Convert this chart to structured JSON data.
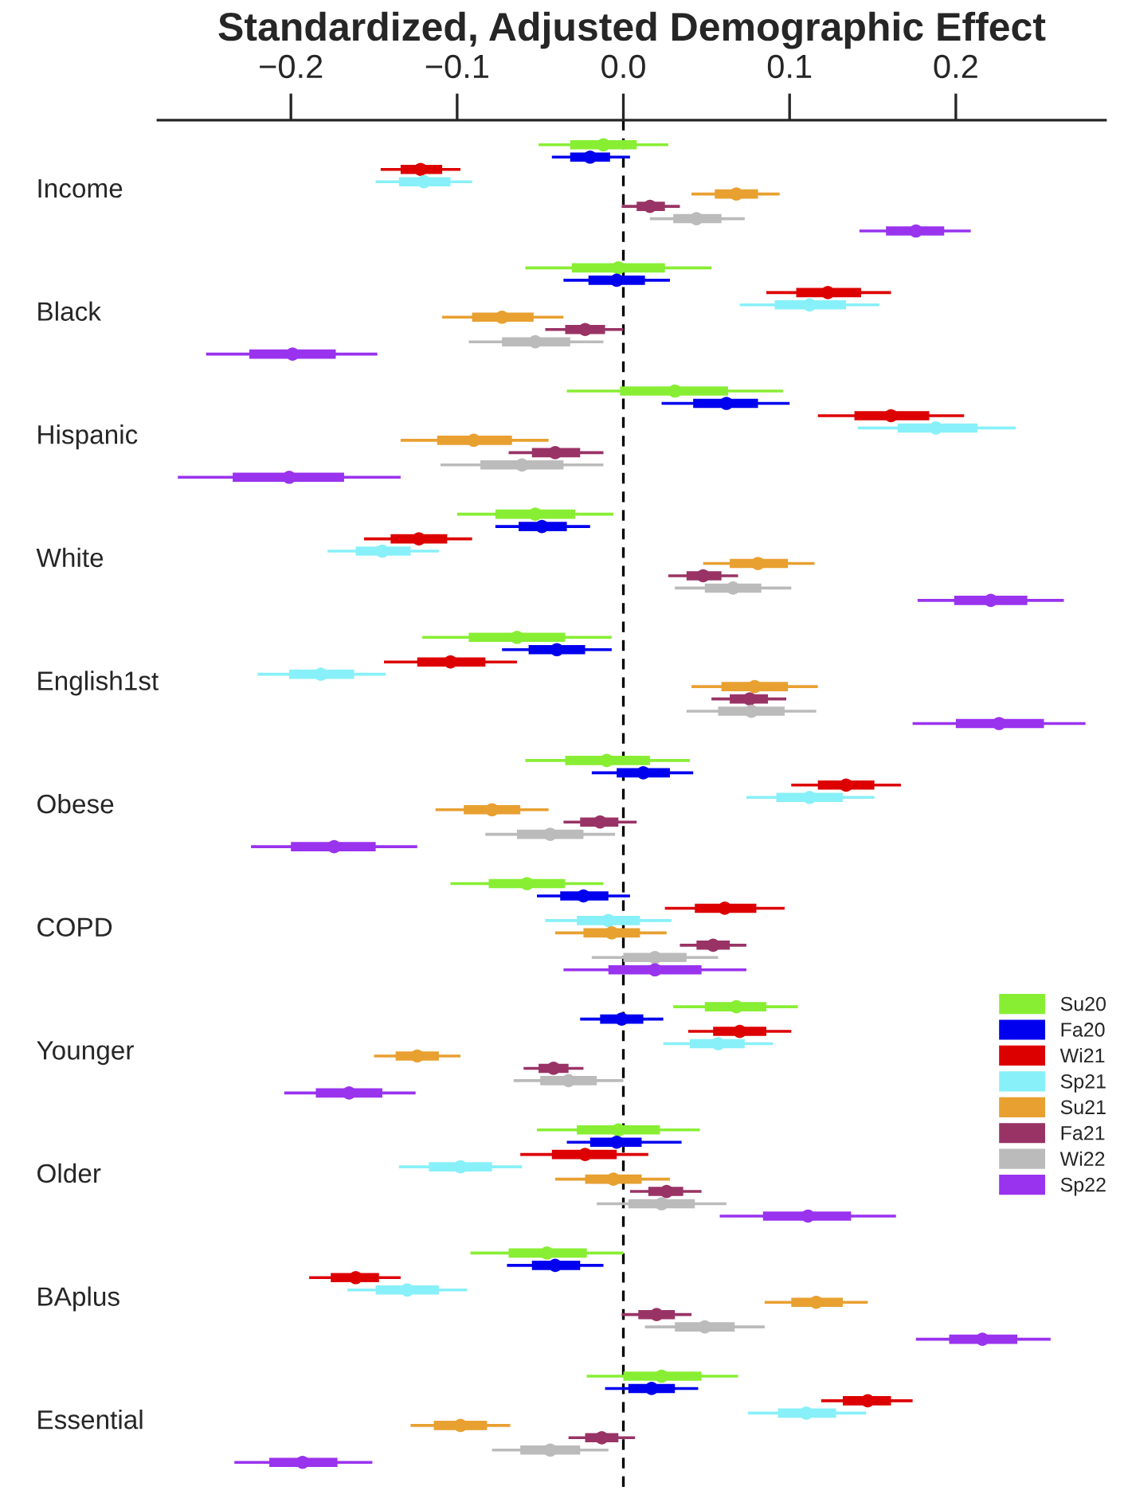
{
  "chart_data": {
    "type": "box",
    "orientation": "horizontal",
    "title": "Standardized, Adjusted Demographic Effect",
    "categories": [
      "Income",
      "Black",
      "Hispanic",
      "White",
      "English1st",
      "Obese",
      "COPD",
      "Younger",
      "Older",
      "BAplus",
      "Essential"
    ],
    "xlim": [
      -0.28,
      0.29
    ],
    "xticks": [
      {
        "value": -0.2,
        "label": "−0.2"
      },
      {
        "value": -0.1,
        "label": "−0.1"
      },
      {
        "value": 0,
        "label": "0.0"
      },
      {
        "value": 0.1,
        "label": "0.1"
      },
      {
        "value": 0.2,
        "label": "0.2"
      }
    ],
    "ref_lines": [
      {
        "axis": "x",
        "value": 0,
        "color": "#000000",
        "line_style": "dashed"
      }
    ],
    "legend": "bottom right",
    "grid": false,
    "marker": "circle",
    "series": [
      {
        "name": "Su20",
        "color": "#88ee33",
        "boxes": [
          {
            "low": -0.051,
            "q1": -0.032,
            "median": -0.012,
            "q3": 0.008,
            "high": 0.027
          },
          {
            "low": -0.059,
            "q1": -0.031,
            "median": -0.003,
            "q3": 0.025,
            "high": 0.053
          },
          {
            "low": -0.034,
            "q1": -0.002,
            "median": 0.031,
            "q3": 0.063,
            "high": 0.096
          },
          {
            "low": -0.1,
            "q1": -0.077,
            "median": -0.053,
            "q3": -0.029,
            "high": -0.006
          },
          {
            "low": -0.121,
            "q1": -0.093,
            "median": -0.064,
            "q3": -0.035,
            "high": -0.007
          },
          {
            "low": -0.059,
            "q1": -0.035,
            "median": -0.01,
            "q3": 0.016,
            "high": 0.04
          },
          {
            "low": -0.104,
            "q1": -0.081,
            "median": -0.058,
            "q3": -0.035,
            "high": -0.012
          },
          {
            "low": 0.03,
            "q1": 0.049,
            "median": 0.068,
            "q3": 0.086,
            "high": 0.105
          },
          {
            "low": -0.052,
            "q1": -0.028,
            "median": -0.003,
            "q3": 0.022,
            "high": 0.046
          },
          {
            "low": -0.092,
            "q1": -0.069,
            "median": -0.046,
            "q3": -0.022,
            "high": 0.0
          },
          {
            "low": -0.022,
            "q1": 0.0,
            "median": 0.023,
            "q3": 0.047,
            "high": 0.069
          }
        ]
      },
      {
        "name": "Fa20",
        "color": "#0000ee",
        "boxes": [
          {
            "low": -0.043,
            "q1": -0.032,
            "median": -0.02,
            "q3": -0.008,
            "high": 0.004
          },
          {
            "low": -0.036,
            "q1": -0.021,
            "median": -0.004,
            "q3": 0.013,
            "high": 0.028
          },
          {
            "low": 0.023,
            "q1": 0.042,
            "median": 0.062,
            "q3": 0.081,
            "high": 0.1
          },
          {
            "low": -0.077,
            "q1": -0.063,
            "median": -0.049,
            "q3": -0.034,
            "high": -0.02
          },
          {
            "low": -0.073,
            "q1": -0.057,
            "median": -0.04,
            "q3": -0.023,
            "high": -0.007
          },
          {
            "low": -0.019,
            "q1": -0.004,
            "median": 0.012,
            "q3": 0.028,
            "high": 0.042
          },
          {
            "low": -0.052,
            "q1": -0.038,
            "median": -0.024,
            "q3": -0.009,
            "high": 0.004
          },
          {
            "low": -0.026,
            "q1": -0.014,
            "median": -0.001,
            "q3": 0.012,
            "high": 0.024
          },
          {
            "low": -0.034,
            "q1": -0.02,
            "median": -0.004,
            "q3": 0.011,
            "high": 0.035
          },
          {
            "low": -0.07,
            "q1": -0.055,
            "median": -0.041,
            "q3": -0.026,
            "high": -0.012
          },
          {
            "low": -0.011,
            "q1": 0.003,
            "median": 0.017,
            "q3": 0.031,
            "high": 0.045
          }
        ]
      },
      {
        "name": "Wi21",
        "color": "#dd0000",
        "boxes": [
          {
            "low": -0.146,
            "q1": -0.134,
            "median": -0.122,
            "q3": -0.109,
            "high": -0.098
          },
          {
            "low": 0.086,
            "q1": 0.104,
            "median": 0.123,
            "q3": 0.143,
            "high": 0.161
          },
          {
            "low": 0.117,
            "q1": 0.139,
            "median": 0.161,
            "q3": 0.184,
            "high": 0.205
          },
          {
            "low": -0.156,
            "q1": -0.14,
            "median": -0.123,
            "q3": -0.106,
            "high": -0.091
          },
          {
            "low": -0.144,
            "q1": -0.124,
            "median": -0.104,
            "q3": -0.083,
            "high": -0.064
          },
          {
            "low": 0.101,
            "q1": 0.117,
            "median": 0.134,
            "q3": 0.151,
            "high": 0.167
          },
          {
            "low": 0.025,
            "q1": 0.043,
            "median": 0.061,
            "q3": 0.08,
            "high": 0.097
          },
          {
            "low": 0.039,
            "q1": 0.054,
            "median": 0.07,
            "q3": 0.086,
            "high": 0.101
          },
          {
            "low": -0.062,
            "q1": -0.043,
            "median": -0.023,
            "q3": -0.004,
            "high": 0.015
          },
          {
            "low": -0.189,
            "q1": -0.176,
            "median": -0.161,
            "q3": -0.147,
            "high": -0.134
          },
          {
            "low": 0.119,
            "q1": 0.132,
            "median": 0.147,
            "q3": 0.161,
            "high": 0.174
          }
        ]
      },
      {
        "name": "Sp21",
        "color": "#88f0f8",
        "boxes": [
          {
            "low": -0.149,
            "q1": -0.135,
            "median": -0.12,
            "q3": -0.104,
            "high": -0.091
          },
          {
            "low": 0.07,
            "q1": 0.091,
            "median": 0.112,
            "q3": 0.134,
            "high": 0.154
          },
          {
            "low": 0.141,
            "q1": 0.165,
            "median": 0.188,
            "q3": 0.213,
            "high": 0.236
          },
          {
            "low": -0.178,
            "q1": -0.161,
            "median": -0.145,
            "q3": -0.128,
            "high": -0.111
          },
          {
            "low": -0.22,
            "q1": -0.201,
            "median": -0.182,
            "q3": -0.162,
            "high": -0.143
          },
          {
            "low": 0.074,
            "q1": 0.092,
            "median": 0.112,
            "q3": 0.132,
            "high": 0.151
          },
          {
            "low": -0.047,
            "q1": -0.028,
            "median": -0.009,
            "q3": 0.01,
            "high": 0.029
          },
          {
            "low": 0.024,
            "q1": 0.04,
            "median": 0.057,
            "q3": 0.073,
            "high": 0.09
          },
          {
            "low": -0.135,
            "q1": -0.117,
            "median": -0.098,
            "q3": -0.079,
            "high": -0.061
          },
          {
            "low": -0.166,
            "q1": -0.149,
            "median": -0.13,
            "q3": -0.111,
            "high": -0.094
          },
          {
            "low": 0.075,
            "q1": 0.093,
            "median": 0.11,
            "q3": 0.128,
            "high": 0.146
          }
        ]
      },
      {
        "name": "Su21",
        "color": "#e8a030",
        "boxes": [
          {
            "low": 0.041,
            "q1": 0.055,
            "median": 0.068,
            "q3": 0.081,
            "high": 0.094
          },
          {
            "low": -0.109,
            "q1": -0.091,
            "median": -0.073,
            "q3": -0.054,
            "high": -0.036
          },
          {
            "low": -0.134,
            "q1": -0.112,
            "median": -0.09,
            "q3": -0.067,
            "high": -0.045
          },
          {
            "low": 0.048,
            "q1": 0.064,
            "median": 0.081,
            "q3": 0.099,
            "high": 0.115
          },
          {
            "low": 0.041,
            "q1": 0.059,
            "median": 0.079,
            "q3": 0.099,
            "high": 0.117
          },
          {
            "low": -0.113,
            "q1": -0.096,
            "median": -0.079,
            "q3": -0.062,
            "high": -0.045
          },
          {
            "low": -0.041,
            "q1": -0.024,
            "median": -0.007,
            "q3": 0.01,
            "high": 0.026
          },
          {
            "low": -0.15,
            "q1": -0.137,
            "median": -0.124,
            "q3": -0.111,
            "high": -0.098
          },
          {
            "low": -0.041,
            "q1": -0.023,
            "median": -0.006,
            "q3": 0.011,
            "high": 0.028
          },
          {
            "low": 0.085,
            "q1": 0.101,
            "median": 0.116,
            "q3": 0.132,
            "high": 0.147
          },
          {
            "low": -0.128,
            "q1": -0.114,
            "median": -0.098,
            "q3": -0.082,
            "high": -0.068
          }
        ]
      },
      {
        "name": "Fa21",
        "color": "#993366",
        "boxes": [
          {
            "low": -0.001,
            "q1": 0.008,
            "median": 0.016,
            "q3": 0.025,
            "high": 0.034
          },
          {
            "low": -0.047,
            "q1": -0.035,
            "median": -0.023,
            "q3": -0.011,
            "high": 0.0
          },
          {
            "low": -0.069,
            "q1": -0.055,
            "median": -0.041,
            "q3": -0.026,
            "high": -0.012
          },
          {
            "low": 0.027,
            "q1": 0.038,
            "median": 0.048,
            "q3": 0.059,
            "high": 0.069
          },
          {
            "low": 0.053,
            "q1": 0.064,
            "median": 0.076,
            "q3": 0.087,
            "high": 0.098
          },
          {
            "low": -0.036,
            "q1": -0.026,
            "median": -0.014,
            "q3": -0.003,
            "high": 0.008
          },
          {
            "low": 0.034,
            "q1": 0.044,
            "median": 0.054,
            "q3": 0.064,
            "high": 0.074
          },
          {
            "low": -0.06,
            "q1": -0.051,
            "median": -0.042,
            "q3": -0.033,
            "high": -0.024
          },
          {
            "low": 0.004,
            "q1": 0.015,
            "median": 0.026,
            "q3": 0.036,
            "high": 0.047
          },
          {
            "low": -0.001,
            "q1": 0.009,
            "median": 0.02,
            "q3": 0.031,
            "high": 0.041
          },
          {
            "low": -0.033,
            "q1": -0.023,
            "median": -0.013,
            "q3": -0.003,
            "high": 0.007
          }
        ]
      },
      {
        "name": "Wi22",
        "color": "#bbbbbb",
        "boxes": [
          {
            "low": 0.016,
            "q1": 0.03,
            "median": 0.044,
            "q3": 0.059,
            "high": 0.073
          },
          {
            "low": -0.093,
            "q1": -0.073,
            "median": -0.053,
            "q3": -0.032,
            "high": -0.012
          },
          {
            "low": -0.11,
            "q1": -0.086,
            "median": -0.061,
            "q3": -0.036,
            "high": -0.012
          },
          {
            "low": 0.031,
            "q1": 0.049,
            "median": 0.066,
            "q3": 0.083,
            "high": 0.101
          },
          {
            "low": 0.038,
            "q1": 0.057,
            "median": 0.077,
            "q3": 0.097,
            "high": 0.116
          },
          {
            "low": -0.083,
            "q1": -0.064,
            "median": -0.044,
            "q3": -0.024,
            "high": -0.005
          },
          {
            "low": -0.019,
            "q1": 0.0,
            "median": 0.019,
            "q3": 0.038,
            "high": 0.057
          },
          {
            "low": -0.066,
            "q1": -0.05,
            "median": -0.033,
            "q3": -0.016,
            "high": 0.0
          },
          {
            "low": -0.016,
            "q1": 0.003,
            "median": 0.023,
            "q3": 0.043,
            "high": 0.062
          },
          {
            "low": 0.013,
            "q1": 0.031,
            "median": 0.049,
            "q3": 0.067,
            "high": 0.085
          },
          {
            "low": -0.079,
            "q1": -0.062,
            "median": -0.044,
            "q3": -0.026,
            "high": -0.009
          }
        ]
      },
      {
        "name": "Sp22",
        "color": "#9933ee",
        "boxes": [
          {
            "low": 0.142,
            "q1": 0.158,
            "median": 0.176,
            "q3": 0.193,
            "high": 0.209
          },
          {
            "low": -0.251,
            "q1": -0.225,
            "median": -0.199,
            "q3": -0.173,
            "high": -0.148
          },
          {
            "low": -0.268,
            "q1": -0.235,
            "median": -0.201,
            "q3": -0.168,
            "high": -0.134
          },
          {
            "low": 0.177,
            "q1": 0.199,
            "median": 0.221,
            "q3": 0.243,
            "high": 0.265
          },
          {
            "low": 0.174,
            "q1": 0.2,
            "median": 0.226,
            "q3": 0.253,
            "high": 0.278
          },
          {
            "low": -0.224,
            "q1": -0.2,
            "median": -0.174,
            "q3": -0.149,
            "high": -0.124
          },
          {
            "low": -0.036,
            "q1": -0.009,
            "median": 0.019,
            "q3": 0.047,
            "high": 0.074
          },
          {
            "low": -0.204,
            "q1": -0.185,
            "median": -0.165,
            "q3": -0.145,
            "high": -0.125
          },
          {
            "low": 0.058,
            "q1": 0.084,
            "median": 0.111,
            "q3": 0.137,
            "high": 0.164
          },
          {
            "low": 0.176,
            "q1": 0.196,
            "median": 0.216,
            "q3": 0.237,
            "high": 0.257
          },
          {
            "low": -0.234,
            "q1": -0.213,
            "median": -0.193,
            "q3": -0.172,
            "high": -0.151
          }
        ]
      }
    ]
  }
}
